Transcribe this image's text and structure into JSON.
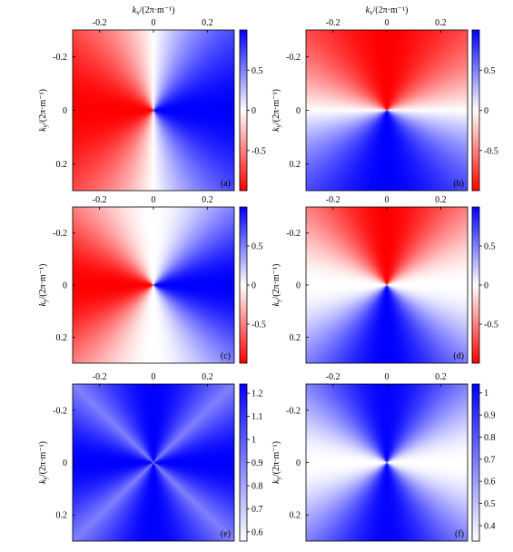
{
  "chart_data": [
    {
      "type": "heatmap",
      "panel": "(a)",
      "field": "sin",
      "x_label_base": "k",
      "x_label_sub": "x",
      "x_label_unit": "/(2π·m⁻¹)",
      "x_label_shown": true,
      "y_label_base": "k",
      "y_label_sub": "y",
      "y_label_unit": "/(2π·m⁻¹)",
      "xlim": [
        -0.3,
        0.3
      ],
      "ylim": [
        -0.3,
        0.3
      ],
      "x_ticks": [
        {
          "v": -0.2,
          "t": "-0.2"
        },
        {
          "v": 0,
          "t": "0"
        },
        {
          "v": 0.2,
          "t": "0.2"
        }
      ],
      "y_ticks": [
        {
          "v": -0.2,
          "t": "-0.2"
        },
        {
          "v": 0,
          "t": "0"
        },
        {
          "v": 0.2,
          "t": "0.2"
        }
      ],
      "colormap": [
        "#ff0000",
        "#ffffff",
        "#0000ff"
      ],
      "color_range": [
        -1,
        1
      ],
      "colorbar_ticks": [
        {
          "v": 0.5,
          "t": "0.5"
        },
        {
          "v": 0,
          "t": "0"
        },
        {
          "v": -0.5,
          "t": "-0.5"
        }
      ]
    },
    {
      "type": "heatmap",
      "panel": "(b)",
      "field": "cos",
      "x_label_base": "k",
      "x_label_sub": "x",
      "x_label_unit": "/(2π·m⁻¹)",
      "x_label_shown": true,
      "y_label_base": "k",
      "y_label_sub": "y",
      "y_label_unit": "/(2π·m⁻¹)",
      "xlim": [
        -0.3,
        0.3
      ],
      "ylim": [
        -0.3,
        0.3
      ],
      "x_ticks": [
        {
          "v": -0.2,
          "t": "-0.2"
        },
        {
          "v": 0,
          "t": "0"
        },
        {
          "v": 0.2,
          "t": "0.2"
        }
      ],
      "y_ticks": [
        {
          "v": -0.2,
          "t": "-0.2"
        },
        {
          "v": 0,
          "t": "0"
        },
        {
          "v": 0.2,
          "t": "0.2"
        }
      ],
      "colormap": [
        "#ff0000",
        "#ffffff",
        "#0000ff"
      ],
      "color_range": [
        -1,
        1
      ],
      "colorbar_ticks": [
        {
          "v": 0.5,
          "t": "0.5"
        },
        {
          "v": 0,
          "t": "0"
        },
        {
          "v": -0.5,
          "t": "-0.5"
        }
      ]
    },
    {
      "type": "heatmap",
      "panel": "(c)",
      "field": "sin2",
      "x_label_shown": false,
      "y_label_base": "k",
      "y_label_sub": "y",
      "y_label_unit": "/(2π·m⁻¹)",
      "xlim": [
        -0.3,
        0.3
      ],
      "ylim": [
        -0.3,
        0.3
      ],
      "x_ticks": [
        {
          "v": -0.2,
          "t": "-0.2"
        },
        {
          "v": 0,
          "t": "0"
        },
        {
          "v": 0.2,
          "t": "0.2"
        }
      ],
      "y_ticks": [
        {
          "v": -0.2,
          "t": "-0.2"
        },
        {
          "v": 0,
          "t": "0"
        },
        {
          "v": 0.2,
          "t": "0.2"
        }
      ],
      "colormap": [
        "#ff0000",
        "#ffffff",
        "#0000ff"
      ],
      "color_range": [
        -1,
        1
      ],
      "colorbar_ticks": [
        {
          "v": 0.5,
          "t": "0.5"
        },
        {
          "v": 0,
          "t": "0"
        },
        {
          "v": -0.5,
          "t": "-0.5"
        }
      ]
    },
    {
      "type": "heatmap",
      "panel": "(d)",
      "field": "cos2",
      "x_label_shown": false,
      "y_label_base": "k",
      "y_label_sub": "y",
      "y_label_unit": "/(2π·m⁻¹)",
      "xlim": [
        -0.3,
        0.3
      ],
      "ylim": [
        -0.3,
        0.3
      ],
      "x_ticks": [
        {
          "v": -0.2,
          "t": "-0.2"
        },
        {
          "v": 0,
          "t": "0"
        },
        {
          "v": 0.2,
          "t": "0.2"
        }
      ],
      "y_ticks": [
        {
          "v": -0.2,
          "t": "-0.2"
        },
        {
          "v": 0,
          "t": "0"
        },
        {
          "v": 0.2,
          "t": "0.2"
        }
      ],
      "colormap": [
        "#ff0000",
        "#ffffff",
        "#0000ff"
      ],
      "color_range": [
        -1,
        1
      ],
      "colorbar_ticks": [
        {
          "v": 0.5,
          "t": "0.5"
        },
        {
          "v": 0,
          "t": "0"
        },
        {
          "v": -0.5,
          "t": "-0.5"
        }
      ]
    },
    {
      "type": "heatmap",
      "panel": "(e)",
      "field": "ampE",
      "x_label_shown": false,
      "y_label_base": "k",
      "y_label_sub": "y",
      "y_label_unit": "/(2π·m⁻¹)",
      "xlim": [
        -0.3,
        0.3
      ],
      "ylim": [
        -0.3,
        0.3
      ],
      "x_ticks": [
        {
          "v": -0.2,
          "t": "-0.2"
        },
        {
          "v": 0,
          "t": "0"
        },
        {
          "v": 0.2,
          "t": "0.2"
        }
      ],
      "y_ticks": [
        {
          "v": -0.2,
          "t": "-0.2"
        },
        {
          "v": 0,
          "t": "0"
        },
        {
          "v": 0.2,
          "t": "0.2"
        }
      ],
      "colormap": [
        "#ffffff",
        "#0000ff"
      ],
      "color_range": [
        0.56,
        1.24
      ],
      "colorbar_ticks": [
        {
          "v": 1.2,
          "t": "1.2"
        },
        {
          "v": 1.1,
          "t": "1.1"
        },
        {
          "v": 1,
          "t": "1"
        },
        {
          "v": 0.9,
          "t": "0.9"
        },
        {
          "v": 0.8,
          "t": "0.8"
        },
        {
          "v": 0.7,
          "t": "0.7"
        },
        {
          "v": 0.6,
          "t": "0.6"
        }
      ]
    },
    {
      "type": "heatmap",
      "panel": "(f)",
      "field": "ampF",
      "x_label_shown": false,
      "y_label_base": "k",
      "y_label_sub": "y",
      "y_label_unit": "/(2π·m⁻¹)",
      "xlim": [
        -0.3,
        0.3
      ],
      "ylim": [
        -0.3,
        0.3
      ],
      "x_ticks": [
        {
          "v": -0.2,
          "t": "-0.2"
        },
        {
          "v": 0,
          "t": "0"
        },
        {
          "v": 0.2,
          "t": "0.2"
        }
      ],
      "y_ticks": [
        {
          "v": -0.2,
          "t": "-0.2"
        },
        {
          "v": 0,
          "t": "0"
        },
        {
          "v": 0.2,
          "t": "0.2"
        }
      ],
      "colormap": [
        "#ffffff",
        "#0000ff"
      ],
      "color_range": [
        0.33,
        1.04
      ],
      "colorbar_ticks": [
        {
          "v": 1,
          "t": "1"
        },
        {
          "v": 0.9,
          "t": "0.9"
        },
        {
          "v": 0.8,
          "t": "0.8"
        },
        {
          "v": 0.7,
          "t": "0.7"
        },
        {
          "v": 0.6,
          "t": "0.6"
        },
        {
          "v": 0.5,
          "t": "0.5"
        },
        {
          "v": 0.4,
          "t": "0.4"
        }
      ]
    }
  ]
}
